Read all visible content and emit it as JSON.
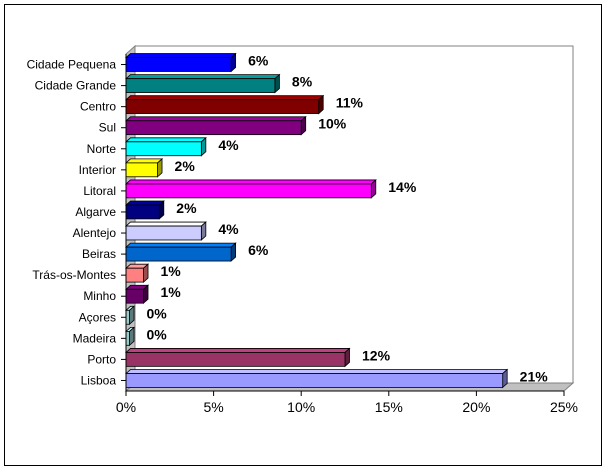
{
  "chart_data": {
    "type": "bar",
    "orientation": "horizontal",
    "style": "3d",
    "categories": [
      "Cidade Pequena",
      "Cidade Grande",
      "Centro",
      "Sul",
      "Norte",
      "Interior",
      "Litoral",
      "Algarve",
      "Alentejo",
      "Beiras",
      "Trás-os-Montes",
      "Minho",
      "Açores",
      "Madeira",
      "Porto",
      "Lisboa"
    ],
    "values": [
      6,
      8.5,
      11,
      10,
      4.3,
      1.8,
      14,
      1.9,
      4.3,
      6,
      1,
      1,
      0.2,
      0.2,
      12.5,
      21.5
    ],
    "value_labels": [
      "6%",
      "8%",
      "11%",
      "10%",
      "4%",
      "2%",
      "14%",
      "2%",
      "4%",
      "6%",
      "1%",
      "1%",
      "0%",
      "0%",
      "12%",
      "21%"
    ],
    "colors": [
      "#0000ff",
      "#008080",
      "#800000",
      "#800080",
      "#00ffff",
      "#ffff00",
      "#ff00ff",
      "#000080",
      "#ccccff",
      "#0066cc",
      "#ff8080",
      "#660066",
      "#99cccc",
      "#99cccc",
      "#993366",
      "#9999ff"
    ],
    "xlim": [
      0,
      25
    ],
    "xticks": [
      "0%",
      "5%",
      "10%",
      "15%",
      "20%",
      "25%"
    ],
    "xtick_values": [
      0,
      5,
      10,
      15,
      20,
      25
    ],
    "title": "",
    "xlabel": "",
    "ylabel": "",
    "grid": false,
    "legend": "none"
  }
}
